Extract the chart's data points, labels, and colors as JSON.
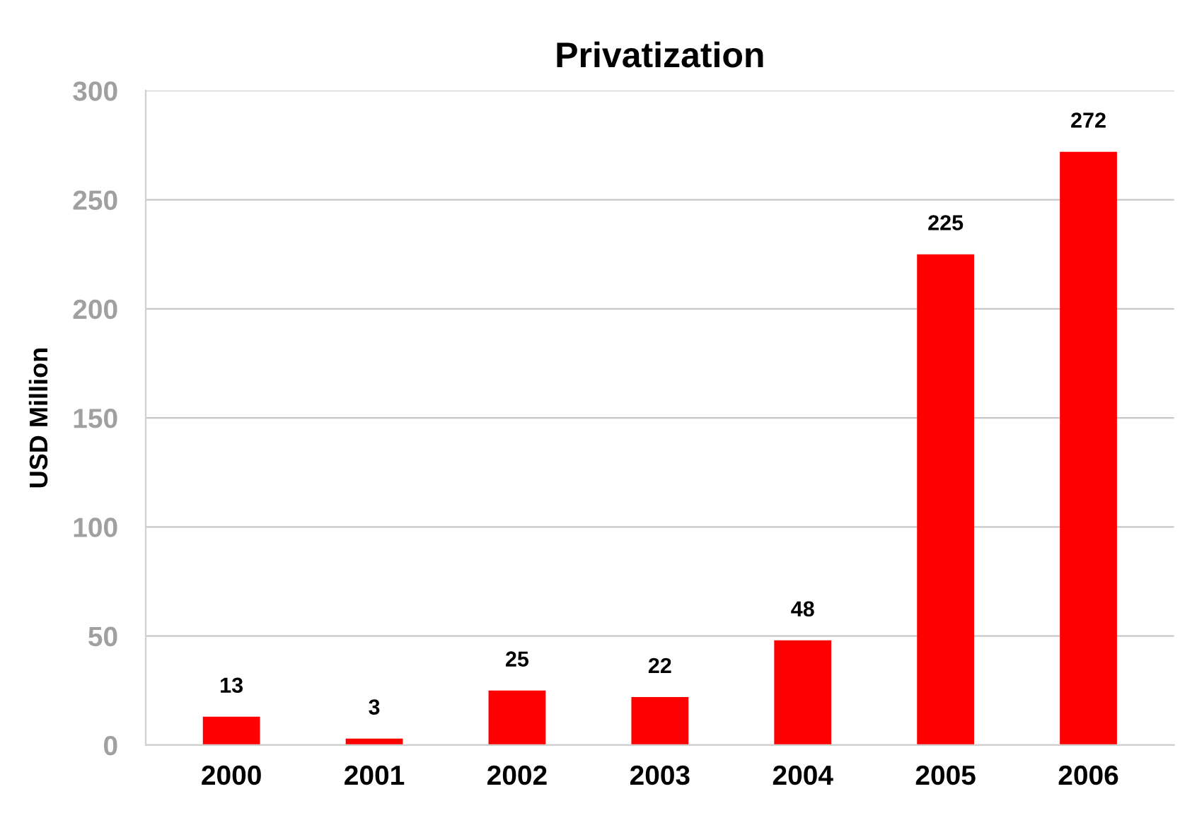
{
  "chart_data": {
    "type": "bar",
    "title": "Privatization",
    "ylabel": "USD Million",
    "categories": [
      "2000",
      "2001",
      "2002",
      "2003",
      "2004",
      "2005",
      "2006"
    ],
    "values": [
      13,
      3,
      25,
      22,
      48,
      225,
      272
    ],
    "color": "#ff0000",
    "ylim": [
      0,
      300
    ],
    "yticks": [
      0,
      50,
      100,
      150,
      200,
      250,
      300
    ],
    "grid": "y",
    "data_labels": true
  }
}
